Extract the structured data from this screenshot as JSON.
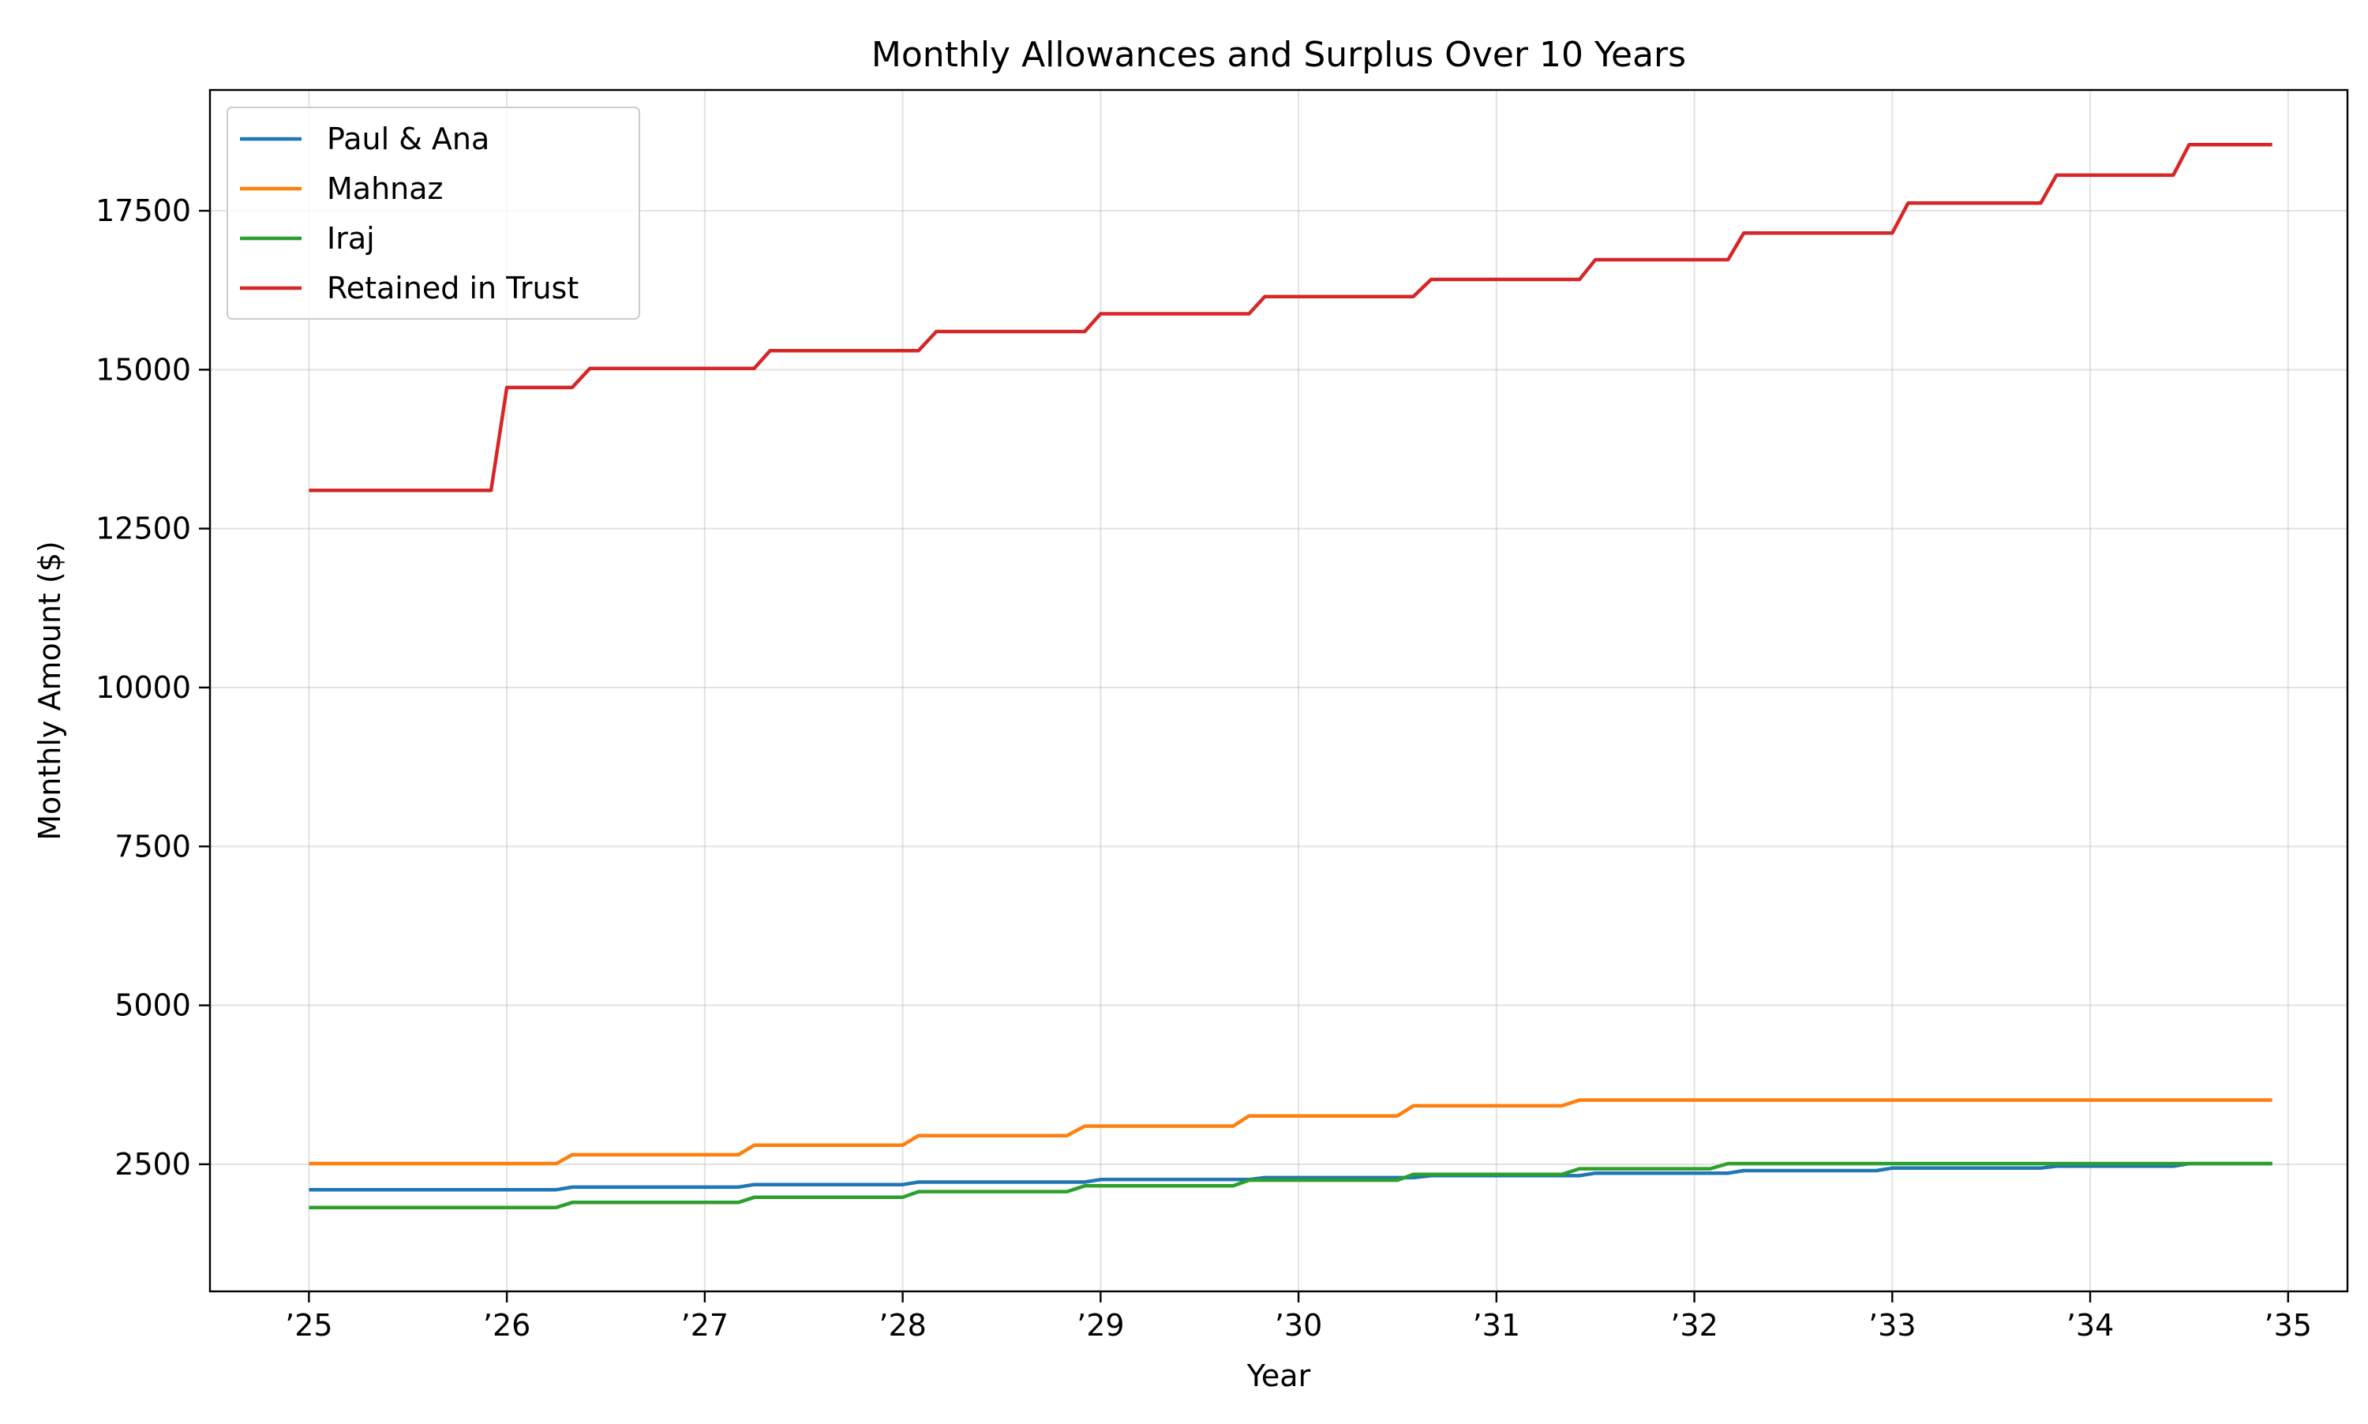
{
  "chart_data": {
    "type": "line",
    "title": "Monthly Allowances and Surplus Over 10 Years",
    "xlabel": "Year",
    "ylabel": "Monthly Amount ($)",
    "xlim": [
      2024.5,
      2035.3
    ],
    "ylim": [
      500,
      19400
    ],
    "x_ticks": [
      {
        "value": 2025,
        "label": "’25"
      },
      {
        "value": 2026,
        "label": "’26"
      },
      {
        "value": 2027,
        "label": "’27"
      },
      {
        "value": 2028,
        "label": "’28"
      },
      {
        "value": 2029,
        "label": "’29"
      },
      {
        "value": 2030,
        "label": "’30"
      },
      {
        "value": 2031,
        "label": "’31"
      },
      {
        "value": 2032,
        "label": "’32"
      },
      {
        "value": 2033,
        "label": "’33"
      },
      {
        "value": 2034,
        "label": "’34"
      },
      {
        "value": 2035,
        "label": "’35"
      }
    ],
    "y_ticks": [
      {
        "value": 2500,
        "label": "2500"
      },
      {
        "value": 5000,
        "label": "5000"
      },
      {
        "value": 7500,
        "label": "7500"
      },
      {
        "value": 10000,
        "label": "10000"
      },
      {
        "value": 12500,
        "label": "12500"
      },
      {
        "value": 15000,
        "label": "15000"
      },
      {
        "value": 17500,
        "label": "17500"
      }
    ],
    "grid": true,
    "legend_position": "top-left",
    "series": [
      {
        "name": "Paul & Ana",
        "color": "#1f77b4",
        "points": [
          [
            2025.0,
            2100
          ],
          [
            2026.25,
            2100
          ],
          [
            2026.33,
            2140
          ],
          [
            2027.17,
            2140
          ],
          [
            2027.25,
            2180
          ],
          [
            2028.0,
            2180
          ],
          [
            2028.08,
            2220
          ],
          [
            2028.92,
            2220
          ],
          [
            2029.0,
            2260
          ],
          [
            2029.75,
            2260
          ],
          [
            2029.83,
            2290
          ],
          [
            2030.58,
            2290
          ],
          [
            2030.67,
            2320
          ],
          [
            2031.42,
            2320
          ],
          [
            2031.5,
            2360
          ],
          [
            2032.17,
            2360
          ],
          [
            2032.25,
            2400
          ],
          [
            2032.92,
            2400
          ],
          [
            2033.0,
            2440
          ],
          [
            2033.75,
            2440
          ],
          [
            2033.83,
            2470
          ],
          [
            2034.42,
            2470
          ],
          [
            2034.5,
            2510
          ],
          [
            2034.92,
            2510
          ]
        ]
      },
      {
        "name": "Mahnaz",
        "color": "#ff7f0e",
        "points": [
          [
            2025.0,
            2510
          ],
          [
            2026.25,
            2510
          ],
          [
            2026.33,
            2650
          ],
          [
            2027.17,
            2650
          ],
          [
            2027.25,
            2800
          ],
          [
            2028.0,
            2800
          ],
          [
            2028.08,
            2950
          ],
          [
            2028.83,
            2950
          ],
          [
            2028.92,
            3100
          ],
          [
            2029.67,
            3100
          ],
          [
            2029.75,
            3260
          ],
          [
            2030.5,
            3260
          ],
          [
            2030.58,
            3420
          ],
          [
            2031.33,
            3420
          ],
          [
            2031.42,
            3510
          ],
          [
            2034.92,
            3510
          ]
        ]
      },
      {
        "name": "Iraj",
        "color": "#2ca02c",
        "points": [
          [
            2025.0,
            1820
          ],
          [
            2026.25,
            1820
          ],
          [
            2026.33,
            1900
          ],
          [
            2027.17,
            1900
          ],
          [
            2027.25,
            1980
          ],
          [
            2028.0,
            1980
          ],
          [
            2028.08,
            2070
          ],
          [
            2028.83,
            2070
          ],
          [
            2028.92,
            2160
          ],
          [
            2029.67,
            2160
          ],
          [
            2029.75,
            2250
          ],
          [
            2030.5,
            2250
          ],
          [
            2030.58,
            2340
          ],
          [
            2031.33,
            2340
          ],
          [
            2031.42,
            2430
          ],
          [
            2032.08,
            2430
          ],
          [
            2032.17,
            2510
          ],
          [
            2034.92,
            2510
          ]
        ]
      },
      {
        "name": "Retained in Trust",
        "color": "#d62728",
        "points": [
          [
            2025.0,
            13100
          ],
          [
            2025.92,
            13100
          ],
          [
            2026.0,
            14720
          ],
          [
            2026.33,
            14720
          ],
          [
            2026.42,
            15020
          ],
          [
            2027.25,
            15020
          ],
          [
            2027.33,
            15300
          ],
          [
            2028.08,
            15300
          ],
          [
            2028.17,
            15600
          ],
          [
            2028.92,
            15600
          ],
          [
            2029.0,
            15880
          ],
          [
            2029.75,
            15880
          ],
          [
            2029.83,
            16150
          ],
          [
            2030.58,
            16150
          ],
          [
            2030.67,
            16420
          ],
          [
            2031.42,
            16420
          ],
          [
            2031.5,
            16730
          ],
          [
            2032.17,
            16730
          ],
          [
            2032.25,
            17150
          ],
          [
            2033.0,
            17150
          ],
          [
            2033.08,
            17620
          ],
          [
            2033.75,
            17620
          ],
          [
            2033.83,
            18060
          ],
          [
            2034.42,
            18060
          ],
          [
            2034.5,
            18540
          ],
          [
            2034.92,
            18540
          ]
        ]
      }
    ]
  }
}
